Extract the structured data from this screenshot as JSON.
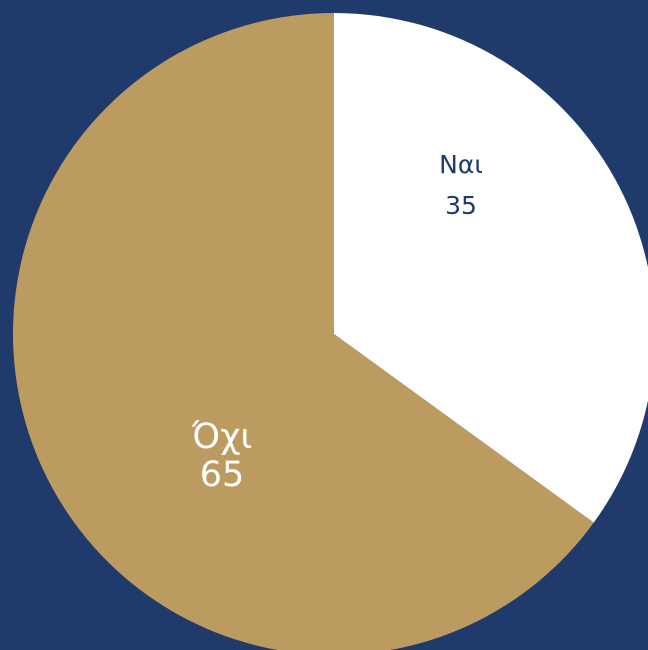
{
  "chart_data": {
    "type": "pie",
    "categories": [
      "Ναι",
      "Όχι"
    ],
    "values": [
      35,
      65
    ],
    "colors": [
      "#ffffff",
      "#bc9b61"
    ]
  }
}
